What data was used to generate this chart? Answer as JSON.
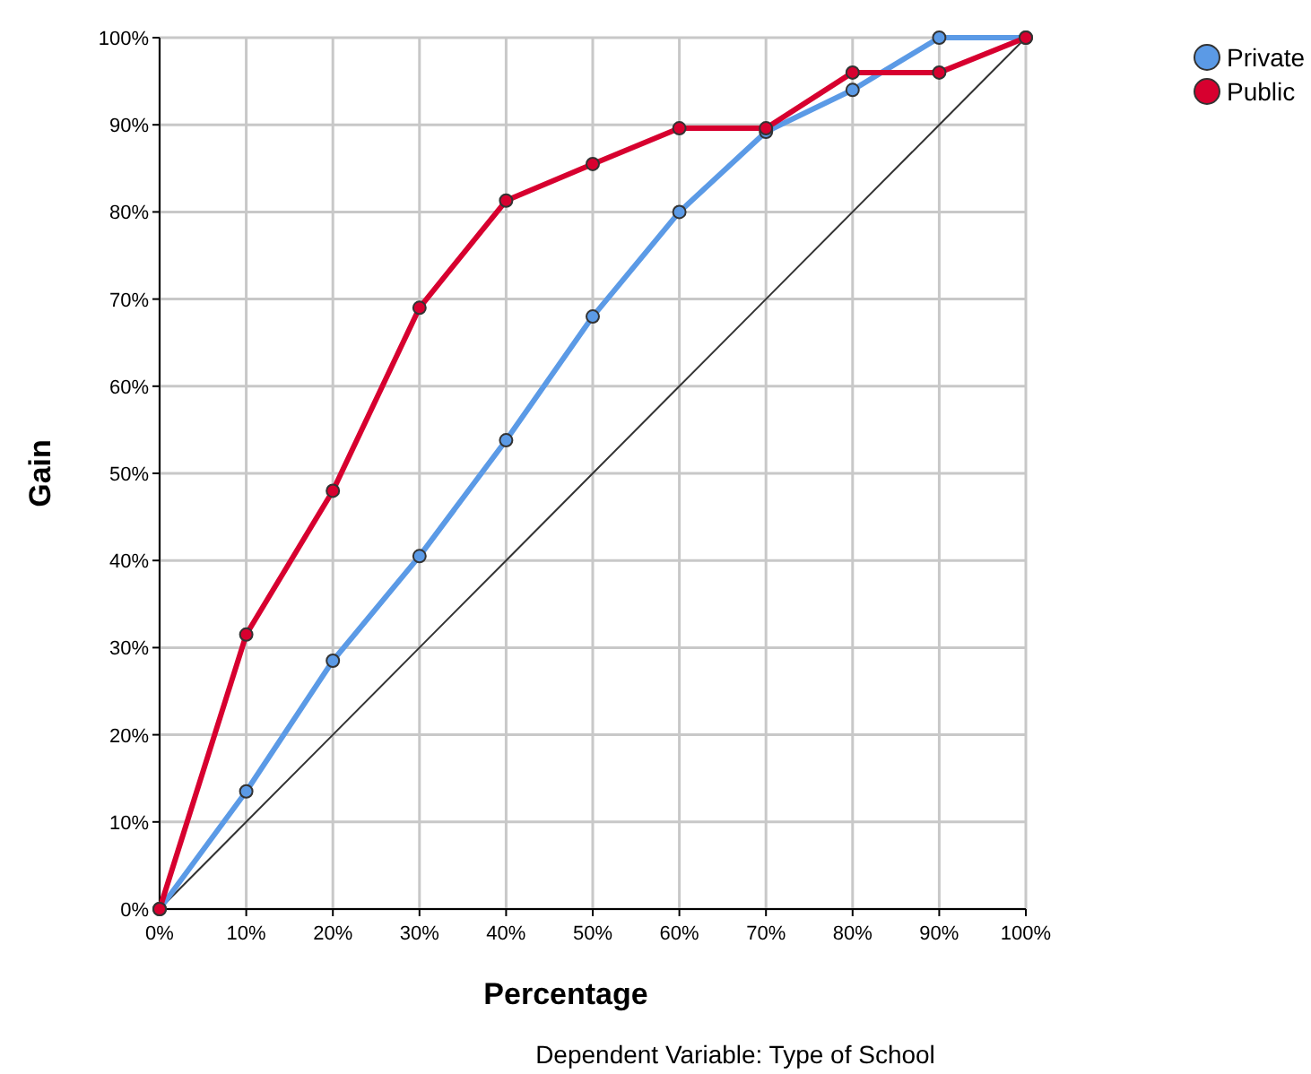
{
  "chart_data": {
    "type": "line",
    "xlabel": "Percentage",
    "ylabel": "Gain",
    "x": [
      0,
      10,
      20,
      30,
      40,
      50,
      60,
      70,
      80,
      90,
      100
    ],
    "series": [
      {
        "type": "line",
        "color": "#333333",
        "marker": "none",
        "values": [
          0,
          10,
          20,
          30,
          40,
          50,
          60,
          70,
          80,
          90,
          100
        ]
      },
      {
        "name": "Private",
        "color": "#5b9ae6",
        "values": [
          0,
          13.5,
          28.5,
          40.5,
          53.8,
          68,
          80,
          89.2,
          94,
          100,
          100
        ]
      },
      {
        "name": "Public",
        "color": "#d7002f",
        "values": [
          0,
          31.5,
          48,
          69,
          81.3,
          85.5,
          89.6,
          89.6,
          96,
          96,
          100
        ]
      }
    ],
    "xlim": [
      0,
      100
    ],
    "ylim": [
      0,
      100
    ],
    "xticks": [
      {
        "value": 0,
        "label": "0%"
      },
      {
        "value": 10,
        "label": "10%"
      },
      {
        "value": 20,
        "label": "20%"
      },
      {
        "value": 30,
        "label": "30%"
      },
      {
        "value": 40,
        "label": "40%"
      },
      {
        "value": 50,
        "label": "50%"
      },
      {
        "value": 60,
        "label": "60%"
      },
      {
        "value": 70,
        "label": "70%"
      },
      {
        "value": 80,
        "label": "80%"
      },
      {
        "value": 90,
        "label": "90%"
      },
      {
        "value": 100,
        "label": "100%"
      }
    ],
    "yticks": [
      {
        "value": 0,
        "label": "0%"
      },
      {
        "value": 10,
        "label": "10%"
      },
      {
        "value": 20,
        "label": "20%"
      },
      {
        "value": 30,
        "label": "30%"
      },
      {
        "value": 40,
        "label": "40%"
      },
      {
        "value": 50,
        "label": "50%"
      },
      {
        "value": 60,
        "label": "60%"
      },
      {
        "value": 70,
        "label": "70%"
      },
      {
        "value": 80,
        "label": "80%"
      },
      {
        "value": 90,
        "label": "90%"
      },
      {
        "value": 100,
        "label": "100%"
      }
    ],
    "grid": true,
    "marker": "circle",
    "legend": "top right",
    "annotations": [
      "Dependent Variable: Type of School"
    ]
  }
}
